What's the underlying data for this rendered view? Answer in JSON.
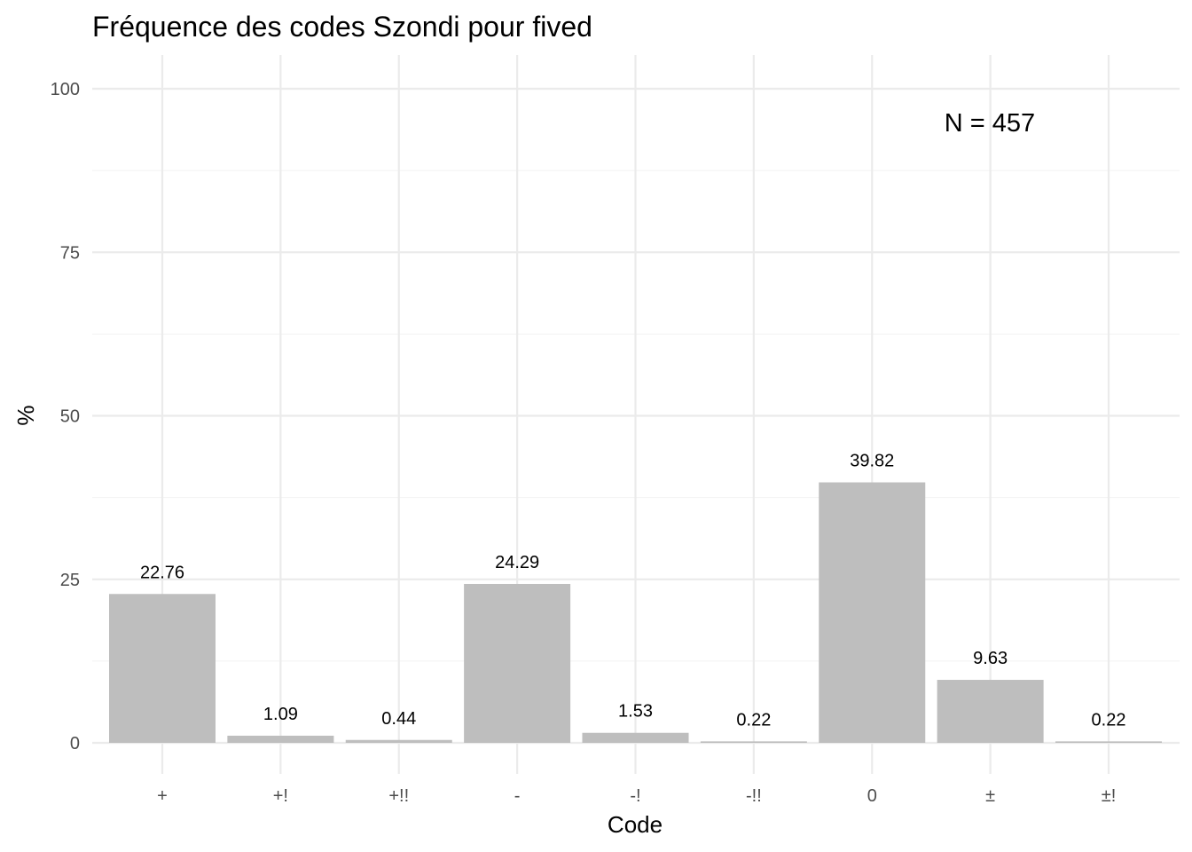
{
  "chart_data": {
    "type": "bar",
    "title": "Fréquence des codes Szondi pour fived",
    "xlabel": "Code",
    "ylabel": "%",
    "categories": [
      "+",
      "+!",
      "+!!",
      "-",
      "-!",
      "-!!",
      "0",
      "±",
      "±!"
    ],
    "values": [
      22.76,
      1.09,
      0.44,
      24.29,
      1.53,
      0.22,
      39.82,
      9.63,
      0.22
    ],
    "data_labels": [
      "22.76",
      "1.09",
      "0.44",
      "24.29",
      "1.53",
      "0.22",
      "39.82",
      "9.63",
      "0.22"
    ],
    "ylim": [
      0,
      100
    ],
    "yticks": [
      0,
      25,
      50,
      75,
      100
    ],
    "ytick_labels": [
      "0",
      "25",
      "50",
      "75",
      "100"
    ],
    "annotation": "N = 457",
    "annotation_position": "top-right",
    "grid": true,
    "legend": false,
    "bar_color": "#bebebe"
  }
}
